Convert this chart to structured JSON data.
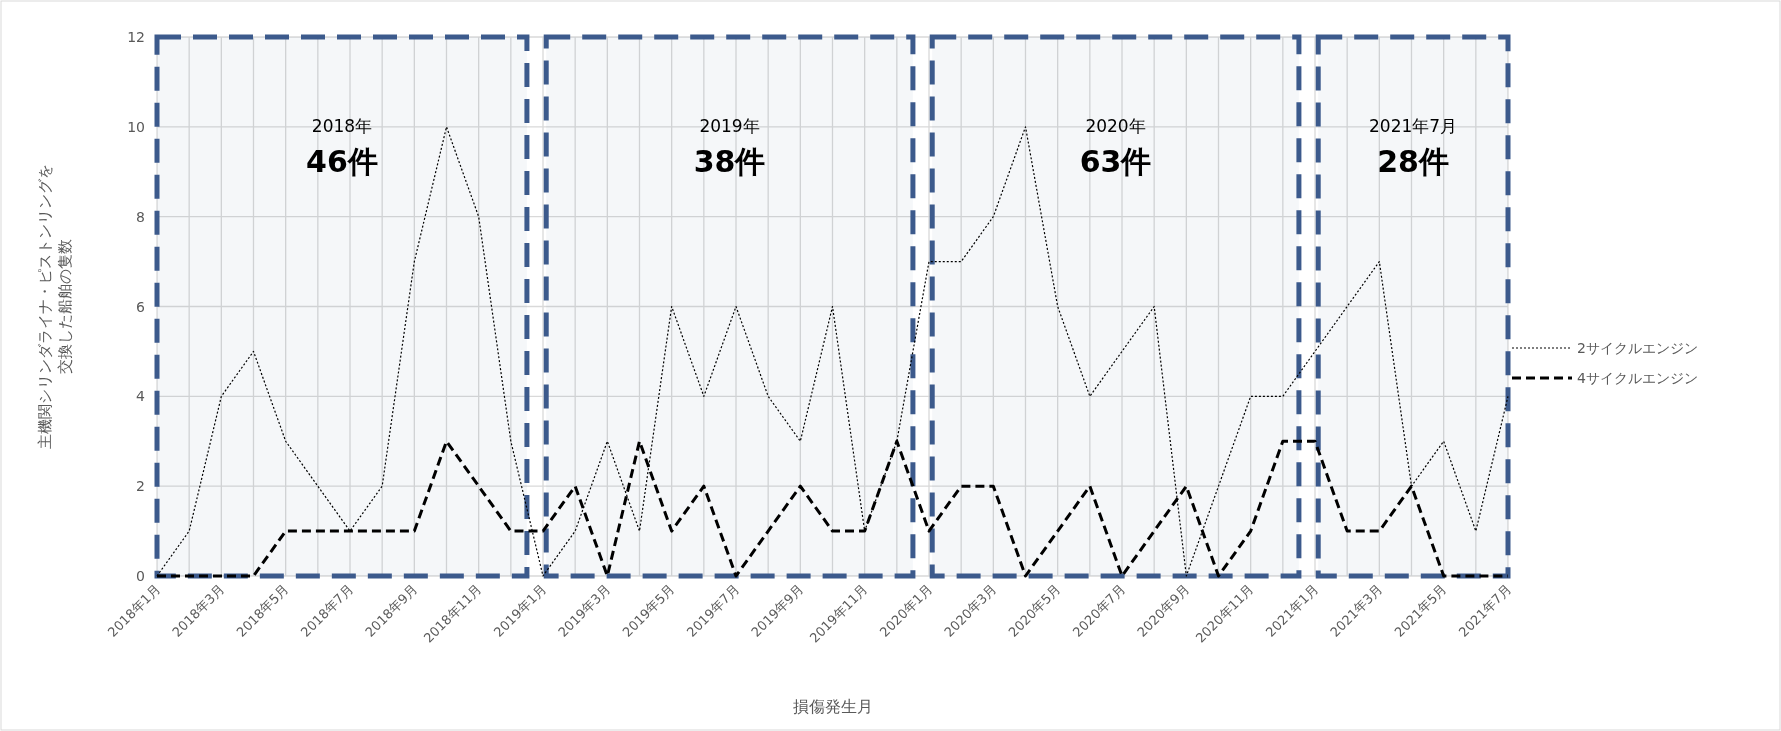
{
  "chart_data": {
    "type": "line",
    "xlabel": "損傷発生月",
    "ylabel": "主機関シリンダライナ・ピストンリングを交換した船舶の隻数",
    "x": [
      "2018-01",
      "2018-02",
      "2018-03",
      "2018-04",
      "2018-05",
      "2018-06",
      "2018-07",
      "2018-08",
      "2018-09",
      "2018-10",
      "2018-11",
      "2018-12",
      "2019-01",
      "2019-02",
      "2019-03",
      "2019-04",
      "2019-05",
      "2019-06",
      "2019-07",
      "2019-08",
      "2019-09",
      "2019-10",
      "2019-11",
      "2019-12",
      "2020-01",
      "2020-02",
      "2020-03",
      "2020-04",
      "2020-05",
      "2020-06",
      "2020-07",
      "2020-08",
      "2020-09",
      "2020-10",
      "2020-11",
      "2020-12",
      "2021-01",
      "2021-02",
      "2021-03",
      "2021-04",
      "2021-05",
      "2021-06",
      "2021-07"
    ],
    "series": [
      {
        "name": "2サイクルエンジン",
        "color": "#000000",
        "line_style": "dotted",
        "values": [
          0,
          1,
          4,
          5,
          3,
          2,
          1,
          2,
          7,
          10,
          8,
          3,
          0,
          1,
          3,
          1,
          6,
          4,
          6,
          4,
          3,
          6,
          1,
          3,
          7,
          7,
          8,
          10,
          6,
          4,
          5,
          6,
          0,
          2,
          4,
          4,
          5,
          6,
          7,
          2,
          3,
          1,
          4
        ]
      },
      {
        "name": "4サイクルエンジン",
        "color": "#000000",
        "line_style": "dashed",
        "values": [
          0,
          0,
          0,
          0,
          1,
          1,
          1,
          1,
          1,
          3,
          2,
          1,
          1,
          2,
          0,
          3,
          1,
          2,
          0,
          1,
          2,
          1,
          1,
          3,
          1,
          2,
          2,
          0,
          1,
          2,
          0,
          1,
          2,
          0,
          1,
          3,
          3,
          1,
          1,
          2,
          0,
          0,
          0
        ]
      }
    ],
    "xlim": [
      "2018-01",
      "2021-07"
    ],
    "xticks": [
      {
        "value": "2018-01",
        "label": "2018年1月"
      },
      {
        "value": "2018-02",
        "label": null
      },
      {
        "value": "2018-03",
        "label": "2018年3月"
      },
      {
        "value": "2018-04",
        "label": null
      },
      {
        "value": "2018-05",
        "label": "2018年5月"
      },
      {
        "value": "2018-06",
        "label": null
      },
      {
        "value": "2018-07",
        "label": "2018年7月"
      },
      {
        "value": "2018-08",
        "label": null
      },
      {
        "value": "2018-09",
        "label": "2018年9月"
      },
      {
        "value": "2018-10",
        "label": null
      },
      {
        "value": "2018-11",
        "label": "2018年11月"
      },
      {
        "value": "2018-12",
        "label": null
      },
      {
        "value": "2019-01",
        "label": "2019年1月"
      },
      {
        "value": "2019-02",
        "label": null
      },
      {
        "value": "2019-03",
        "label": "2019年3月"
      },
      {
        "value": "2019-04",
        "label": null
      },
      {
        "value": "2019-05",
        "label": "2019年5月"
      },
      {
        "value": "2019-06",
        "label": null
      },
      {
        "value": "2019-07",
        "label": "2019年7月"
      },
      {
        "value": "2019-08",
        "label": null
      },
      {
        "value": "2019-09",
        "label": "2019年9月"
      },
      {
        "value": "2019-10",
        "label": null
      },
      {
        "value": "2019-11",
        "label": "2019年11月"
      },
      {
        "value": "2019-12",
        "label": null
      },
      {
        "value": "2020-01",
        "label": "2020年1月"
      },
      {
        "value": "2020-02",
        "label": null
      },
      {
        "value": "2020-03",
        "label": "2020年3月"
      },
      {
        "value": "2020-04",
        "label": null
      },
      {
        "value": "2020-05",
        "label": "2020年5月"
      },
      {
        "value": "2020-06",
        "label": null
      },
      {
        "value": "2020-07",
        "label": "2020年7月"
      },
      {
        "value": "2020-08",
        "label": null
      },
      {
        "value": "2020-09",
        "label": "2020年9月"
      },
      {
        "value": "2020-10",
        "label": null
      },
      {
        "value": "2020-11",
        "label": "2020年11月"
      },
      {
        "value": "2020-12",
        "label": null
      },
      {
        "value": "2021-01",
        "label": "2021年1月"
      },
      {
        "value": "2021-02",
        "label": null
      },
      {
        "value": "2021-03",
        "label": "2021年3月"
      },
      {
        "value": "2021-04",
        "label": null
      },
      {
        "value": "2021-05",
        "label": "2021年5月"
      },
      {
        "value": "2021-06",
        "label": null
      },
      {
        "value": "2021-07",
        "label": "2021年7月"
      }
    ],
    "ylim": [
      0,
      12
    ],
    "yticks": [
      0,
      2,
      4,
      6,
      8,
      10,
      12
    ],
    "bands": [
      {
        "axis": "x",
        "from": "2018-01-01",
        "to": "2018-12-16",
        "label": "2018年\n46件",
        "color": "#3c5a8c"
      },
      {
        "axis": "x",
        "from": "2019-01-04",
        "to": "2019-12-16",
        "label": "2019年\n38件",
        "color": "#3c5a8c"
      },
      {
        "axis": "x",
        "from": "2020-01-04",
        "to": "2020-12-16",
        "label": "2020年\n63件",
        "color": "#3c5a8c"
      },
      {
        "axis": "x",
        "from": "2021-01-04",
        "to": "2021-07-01",
        "label": "2021年7月\n28件",
        "color": "#3c5a8c"
      }
    ],
    "grid": true,
    "legend": "right"
  }
}
